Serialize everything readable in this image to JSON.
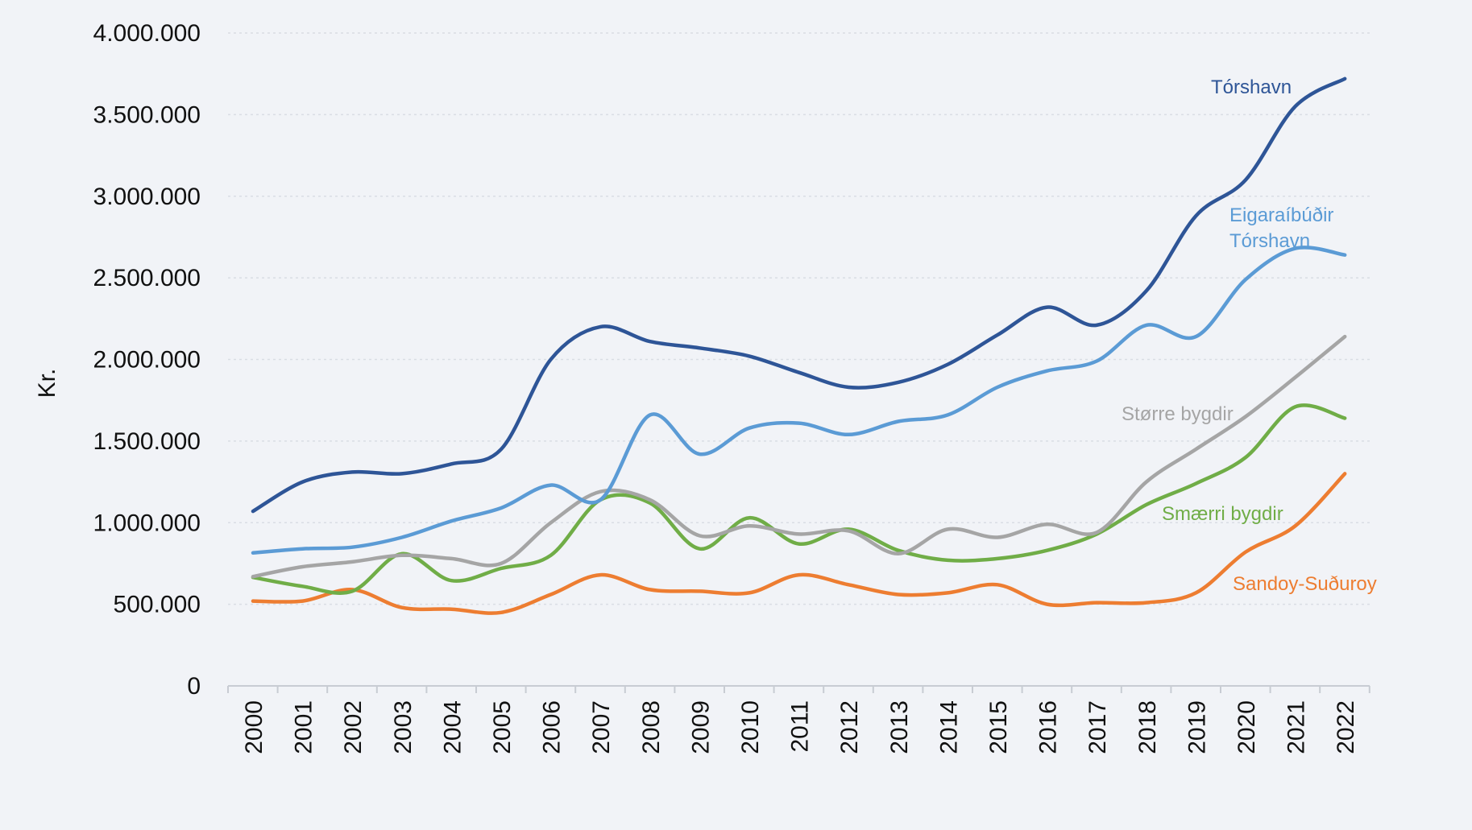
{
  "chart_data": {
    "type": "line",
    "title": "",
    "xlabel": "",
    "ylabel": "Kr.",
    "ylim": [
      0,
      4000000
    ],
    "y_ticks": [
      0,
      500000,
      1000000,
      1500000,
      2000000,
      2500000,
      3000000,
      3500000,
      4000000
    ],
    "y_tick_labels": [
      "0",
      "500.000",
      "1.000.000",
      "1.500.000",
      "2.000.000",
      "2.500.000",
      "3.000.000",
      "3.500.000",
      "4.000.000"
    ],
    "grid": true,
    "legend": "inline labels",
    "categories": [
      "2000",
      "2001",
      "2002",
      "2003",
      "2004",
      "2005",
      "2006",
      "2007",
      "2008",
      "2009",
      "2010",
      "2011",
      "2012",
      "2013",
      "2014",
      "2015",
      "2016",
      "2017",
      "2018",
      "2019",
      "2020",
      "2021",
      "2022"
    ],
    "series": [
      {
        "name": "Tórshavn",
        "label_lines": [
          "Tórshavn"
        ],
        "color": "#2e5597",
        "values": [
          1070000,
          1250000,
          1310000,
          1300000,
          1360000,
          1450000,
          2000000,
          2200000,
          2110000,
          2070000,
          2020000,
          1920000,
          1830000,
          1860000,
          1970000,
          2150000,
          2320000,
          2210000,
          2420000,
          2880000,
          3100000,
          3550000,
          3720000
        ]
      },
      {
        "name": "Eigaraíbúðir Tórshavn",
        "label_lines": [
          "Eigaraíbúðir",
          "Tórshavn"
        ],
        "color": "#5b9bd5",
        "values": [
          815000,
          840000,
          850000,
          910000,
          1010000,
          1090000,
          1230000,
          1140000,
          1660000,
          1420000,
          1580000,
          1610000,
          1540000,
          1620000,
          1660000,
          1830000,
          1930000,
          1990000,
          2210000,
          2140000,
          2490000,
          2680000,
          2640000
        ]
      },
      {
        "name": "Større bygdir",
        "label_lines": [
          "Større bygdir"
        ],
        "color": "#a5a5a5",
        "values": [
          670000,
          730000,
          760000,
          800000,
          780000,
          750000,
          1000000,
          1190000,
          1140000,
          920000,
          980000,
          930000,
          950000,
          810000,
          960000,
          910000,
          990000,
          940000,
          1250000,
          1450000,
          1650000,
          1890000,
          2140000
        ]
      },
      {
        "name": "Smærri bygdir",
        "label_lines": [
          "Smærri bygdir"
        ],
        "color": "#70ad47",
        "values": [
          665000,
          610000,
          580000,
          810000,
          645000,
          720000,
          800000,
          1140000,
          1120000,
          840000,
          1030000,
          870000,
          960000,
          830000,
          770000,
          780000,
          830000,
          930000,
          1110000,
          1240000,
          1400000,
          1710000,
          1640000
        ]
      },
      {
        "name": "Sandoy-Suðuroy",
        "label_lines": [
          "Sandoy-Suðuroy"
        ],
        "color": "#ed7d31",
        "values": [
          520000,
          520000,
          590000,
          480000,
          470000,
          450000,
          560000,
          680000,
          590000,
          580000,
          570000,
          680000,
          620000,
          560000,
          570000,
          620000,
          500000,
          510000,
          510000,
          570000,
          820000,
          980000,
          1300000
        ]
      }
    ]
  }
}
